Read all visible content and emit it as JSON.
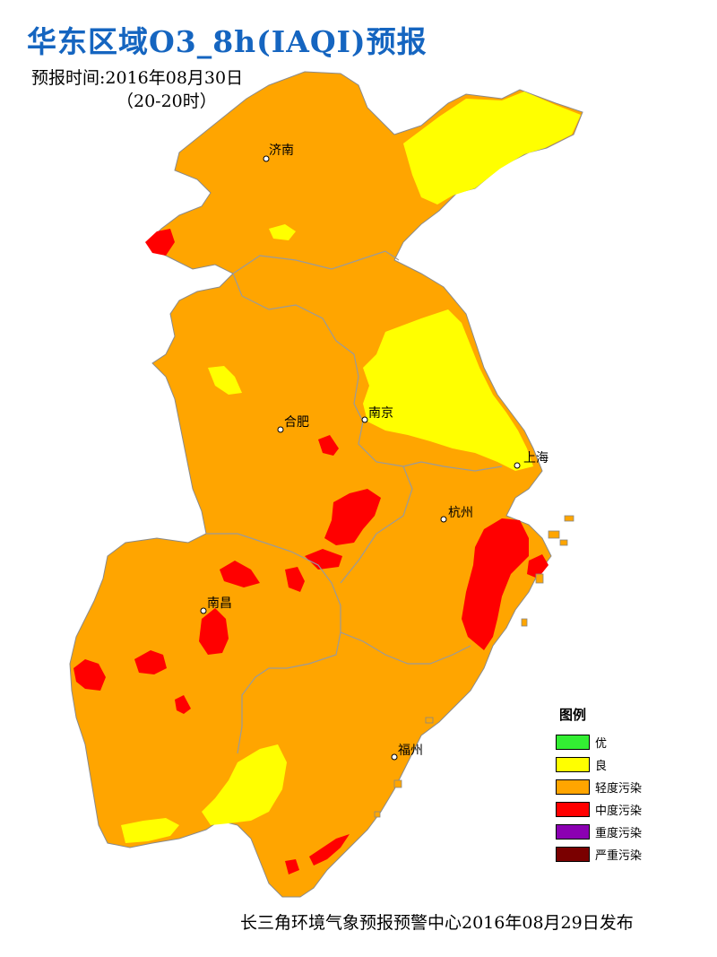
{
  "title": "华东区域O3_8h(IAQI)预报",
  "forecast_time_line": "预报时间:2016年08月30日",
  "forecast_period_line": "（20-20时）",
  "cities": [
    {
      "key": "jinan",
      "name": "济南"
    },
    {
      "key": "nanjing",
      "name": "南京"
    },
    {
      "key": "hefei",
      "name": "合肥"
    },
    {
      "key": "shanghai",
      "name": "上海"
    },
    {
      "key": "hangzhou",
      "name": "杭州"
    },
    {
      "key": "nanchang",
      "name": "南昌"
    },
    {
      "key": "fuzhou",
      "name": "福州"
    }
  ],
  "legend": {
    "title": "图例",
    "items": [
      {
        "label": "优",
        "color": "#33ee33"
      },
      {
        "label": "良",
        "color": "#ffff00"
      },
      {
        "label": "轻度污染",
        "color": "#ffa500"
      },
      {
        "label": "中度污染",
        "color": "#ff0000"
      },
      {
        "label": "重度污染",
        "color": "#8b00b2"
      },
      {
        "label": "严重污染",
        "color": "#7a0000"
      }
    ]
  },
  "footer": "长三角环境气象预报预警中心2016年08月29日发布",
  "colors": {
    "title": "#1565c0",
    "good": "#ffff00",
    "light": "#ffa500",
    "moderate": "#ff0000",
    "border": "#999999"
  }
}
